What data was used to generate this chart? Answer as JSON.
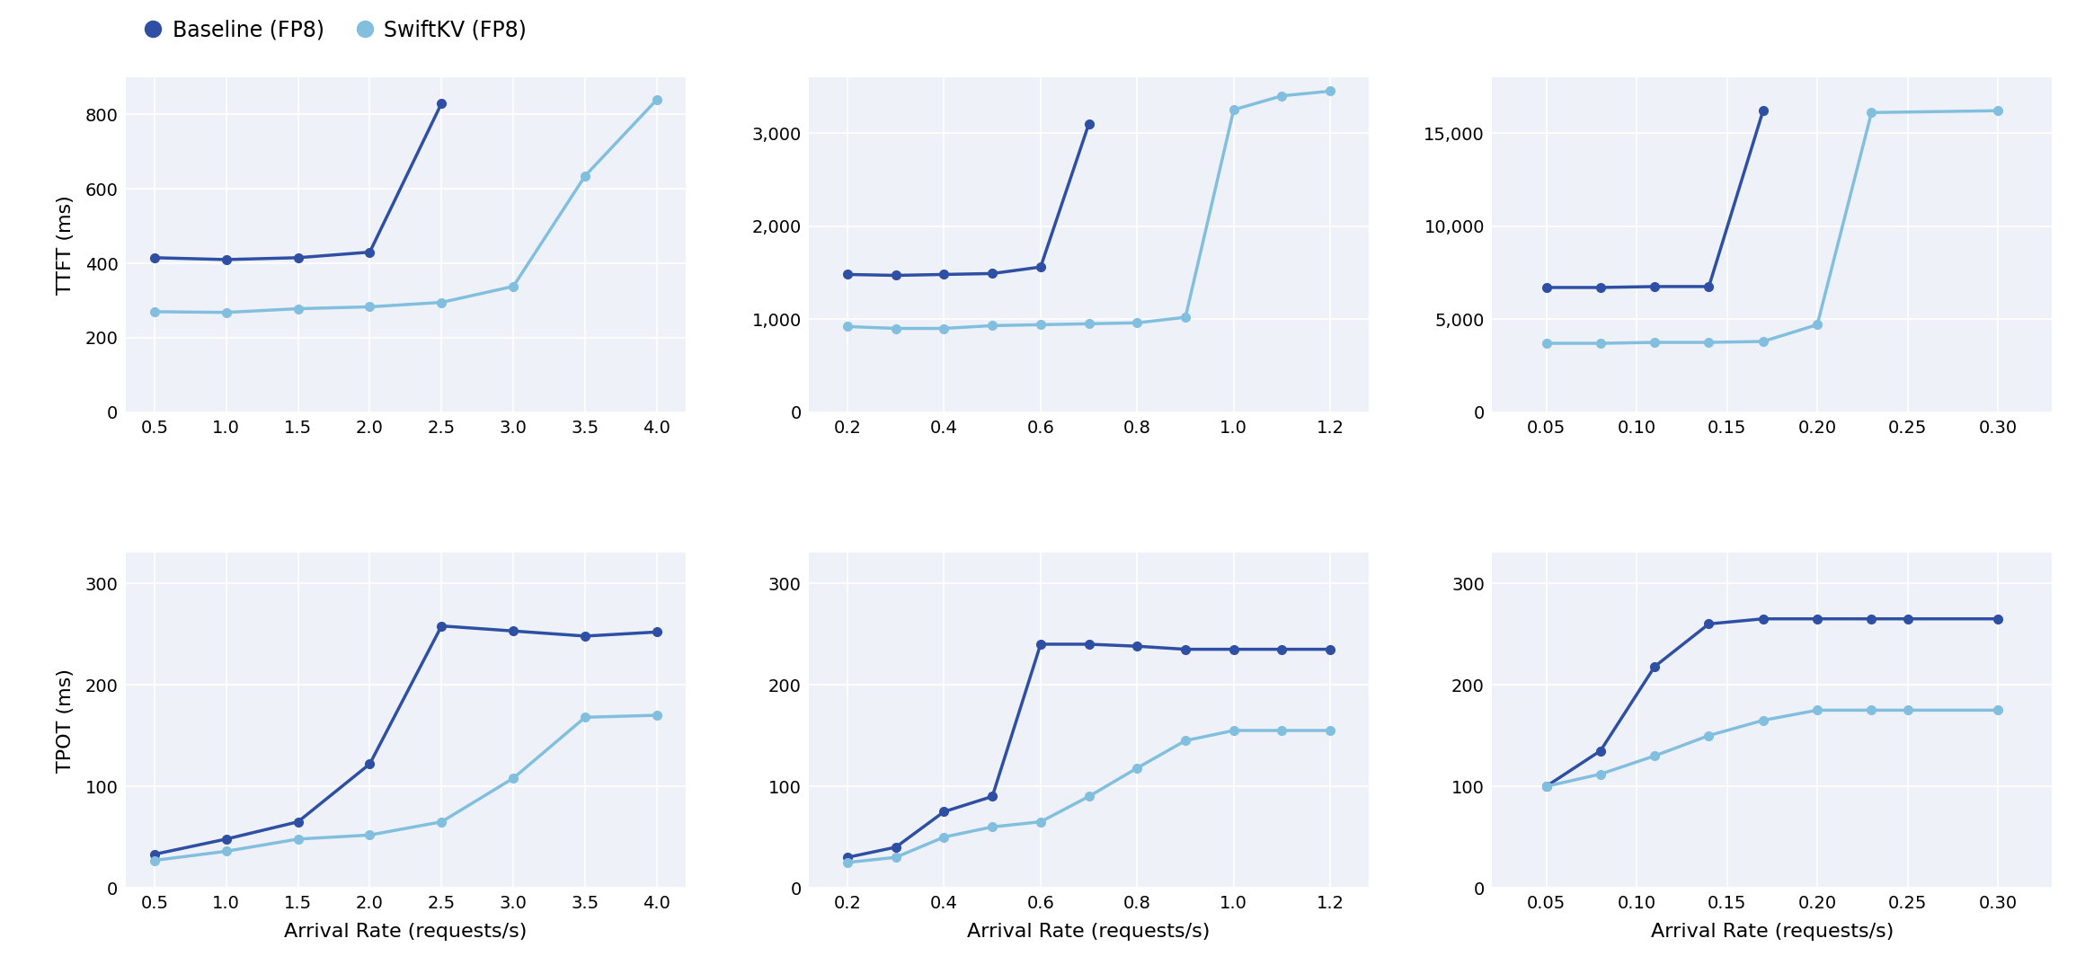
{
  "baseline_color": "#2e4fa3",
  "swiftkv_color": "#82bfdf",
  "background_color": "#eef2f8",
  "grid_color": "#ffffff",
  "fig_bg": "#ffffff",
  "plot00": {
    "baseline_x": [
      0.5,
      1.0,
      1.5,
      2.0,
      2.5
    ],
    "baseline_y": [
      415,
      410,
      415,
      430,
      830
    ],
    "swiftkv_x": [
      0.5,
      1.0,
      1.5,
      2.0,
      2.5,
      3.0,
      3.5,
      4.0
    ],
    "swiftkv_y": [
      270,
      268,
      278,
      283,
      295,
      338,
      635,
      840
    ],
    "ylabel": "TTFT (ms)",
    "xlabel": "",
    "yticks": [
      0,
      200,
      400,
      600,
      800
    ],
    "xtick_labels": [
      "0.5",
      "1.0",
      "1.5",
      "2.0",
      "2.5",
      "3.0",
      "3.5",
      "4.0"
    ],
    "xtick_vals": [
      0.5,
      1.0,
      1.5,
      2.0,
      2.5,
      3.0,
      3.5,
      4.0
    ],
    "ylim": [
      0,
      900
    ],
    "xlim": [
      0.3,
      4.2
    ]
  },
  "plot01": {
    "baseline_x": [
      0.2,
      0.3,
      0.4,
      0.5,
      0.6,
      0.7
    ],
    "baseline_y": [
      1480,
      1470,
      1480,
      1490,
      1560,
      3100
    ],
    "swiftkv_x": [
      0.2,
      0.3,
      0.4,
      0.5,
      0.6,
      0.7,
      0.8,
      0.9,
      1.0,
      1.1,
      1.2
    ],
    "swiftkv_y": [
      920,
      900,
      900,
      930,
      940,
      950,
      960,
      1020,
      3250,
      3400,
      3450
    ],
    "ylabel": "",
    "xlabel": "",
    "yticks": [
      0,
      1000,
      2000,
      3000
    ],
    "xtick_labels": [
      "0.2",
      "0.4",
      "0.6",
      "0.8",
      "1.0",
      "1.2"
    ],
    "xtick_vals": [
      0.2,
      0.4,
      0.6,
      0.8,
      1.0,
      1.2
    ],
    "ylim": [
      0,
      3600
    ],
    "xlim": [
      0.12,
      1.28
    ]
  },
  "plot02": {
    "baseline_x": [
      0.05,
      0.08,
      0.11,
      0.14,
      0.17
    ],
    "baseline_y": [
      6700,
      6700,
      6750,
      6750,
      16200
    ],
    "swiftkv_x": [
      0.05,
      0.08,
      0.11,
      0.14,
      0.17,
      0.2,
      0.23,
      0.3
    ],
    "swiftkv_y": [
      3700,
      3700,
      3750,
      3750,
      3800,
      4700,
      16100,
      16200
    ],
    "ylabel": "",
    "xlabel": "",
    "yticks": [
      0,
      5000,
      10000,
      15000
    ],
    "xtick_labels": [
      "0.05",
      "0.10",
      "0.15",
      "0.20",
      "0.25",
      "0.30"
    ],
    "xtick_vals": [
      0.05,
      0.1,
      0.15,
      0.2,
      0.25,
      0.3
    ],
    "ylim": [
      0,
      18000
    ],
    "xlim": [
      0.02,
      0.33
    ]
  },
  "plot10": {
    "baseline_x": [
      0.5,
      1.0,
      1.5,
      2.0,
      2.5,
      3.0,
      3.5,
      4.0
    ],
    "baseline_y": [
      33,
      48,
      65,
      122,
      258,
      253,
      248,
      252
    ],
    "swiftkv_x": [
      0.5,
      1.0,
      1.5,
      2.0,
      2.5,
      3.0,
      3.5,
      4.0
    ],
    "swiftkv_y": [
      27,
      36,
      48,
      52,
      65,
      108,
      168,
      170
    ],
    "ylabel": "TPOT (ms)",
    "xlabel": "Arrival Rate (requests/s)",
    "yticks": [
      0,
      100,
      200,
      300
    ],
    "xtick_labels": [
      "0.5",
      "1.0",
      "1.5",
      "2.0",
      "2.5",
      "3.0",
      "3.5",
      "4.0"
    ],
    "xtick_vals": [
      0.5,
      1.0,
      1.5,
      2.0,
      2.5,
      3.0,
      3.5,
      4.0
    ],
    "ylim": [
      0,
      330
    ],
    "xlim": [
      0.3,
      4.2
    ]
  },
  "plot11": {
    "baseline_x": [
      0.2,
      0.3,
      0.4,
      0.5,
      0.6,
      0.7,
      0.8,
      0.9,
      1.0,
      1.1,
      1.2
    ],
    "baseline_y": [
      30,
      40,
      75,
      90,
      240,
      240,
      238,
      235,
      235,
      235,
      235
    ],
    "swiftkv_x": [
      0.2,
      0.3,
      0.4,
      0.5,
      0.6,
      0.7,
      0.8,
      0.9,
      1.0,
      1.1,
      1.2
    ],
    "swiftkv_y": [
      25,
      30,
      50,
      60,
      65,
      90,
      118,
      145,
      155,
      155,
      155
    ],
    "ylabel": "",
    "xlabel": "Arrival Rate (requests/s)",
    "yticks": [
      0,
      100,
      200,
      300
    ],
    "xtick_labels": [
      "0.2",
      "0.4",
      "0.6",
      "0.8",
      "1.0",
      "1.2"
    ],
    "xtick_vals": [
      0.2,
      0.4,
      0.6,
      0.8,
      1.0,
      1.2
    ],
    "ylim": [
      0,
      330
    ],
    "xlim": [
      0.12,
      1.28
    ]
  },
  "plot12": {
    "baseline_x": [
      0.05,
      0.08,
      0.11,
      0.14,
      0.17,
      0.2,
      0.23,
      0.25,
      0.3
    ],
    "baseline_y": [
      100,
      135,
      218,
      260,
      265,
      265,
      265,
      265,
      265
    ],
    "swiftkv_x": [
      0.05,
      0.08,
      0.11,
      0.14,
      0.17,
      0.2,
      0.23,
      0.25,
      0.3
    ],
    "swiftkv_y": [
      100,
      112,
      130,
      150,
      165,
      175,
      175,
      175,
      175
    ],
    "ylabel": "",
    "xlabel": "Arrival Rate (requests/s)",
    "yticks": [
      0,
      100,
      200,
      300
    ],
    "xtick_labels": [
      "0.05",
      "0.10",
      "0.15",
      "0.20",
      "0.25",
      "0.30"
    ],
    "xtick_vals": [
      0.05,
      0.1,
      0.15,
      0.2,
      0.25,
      0.3
    ],
    "ylim": [
      0,
      330
    ],
    "xlim": [
      0.02,
      0.33
    ]
  },
  "legend_labels": [
    "Baseline (FP8)",
    "SwiftKV (FP8)"
  ]
}
